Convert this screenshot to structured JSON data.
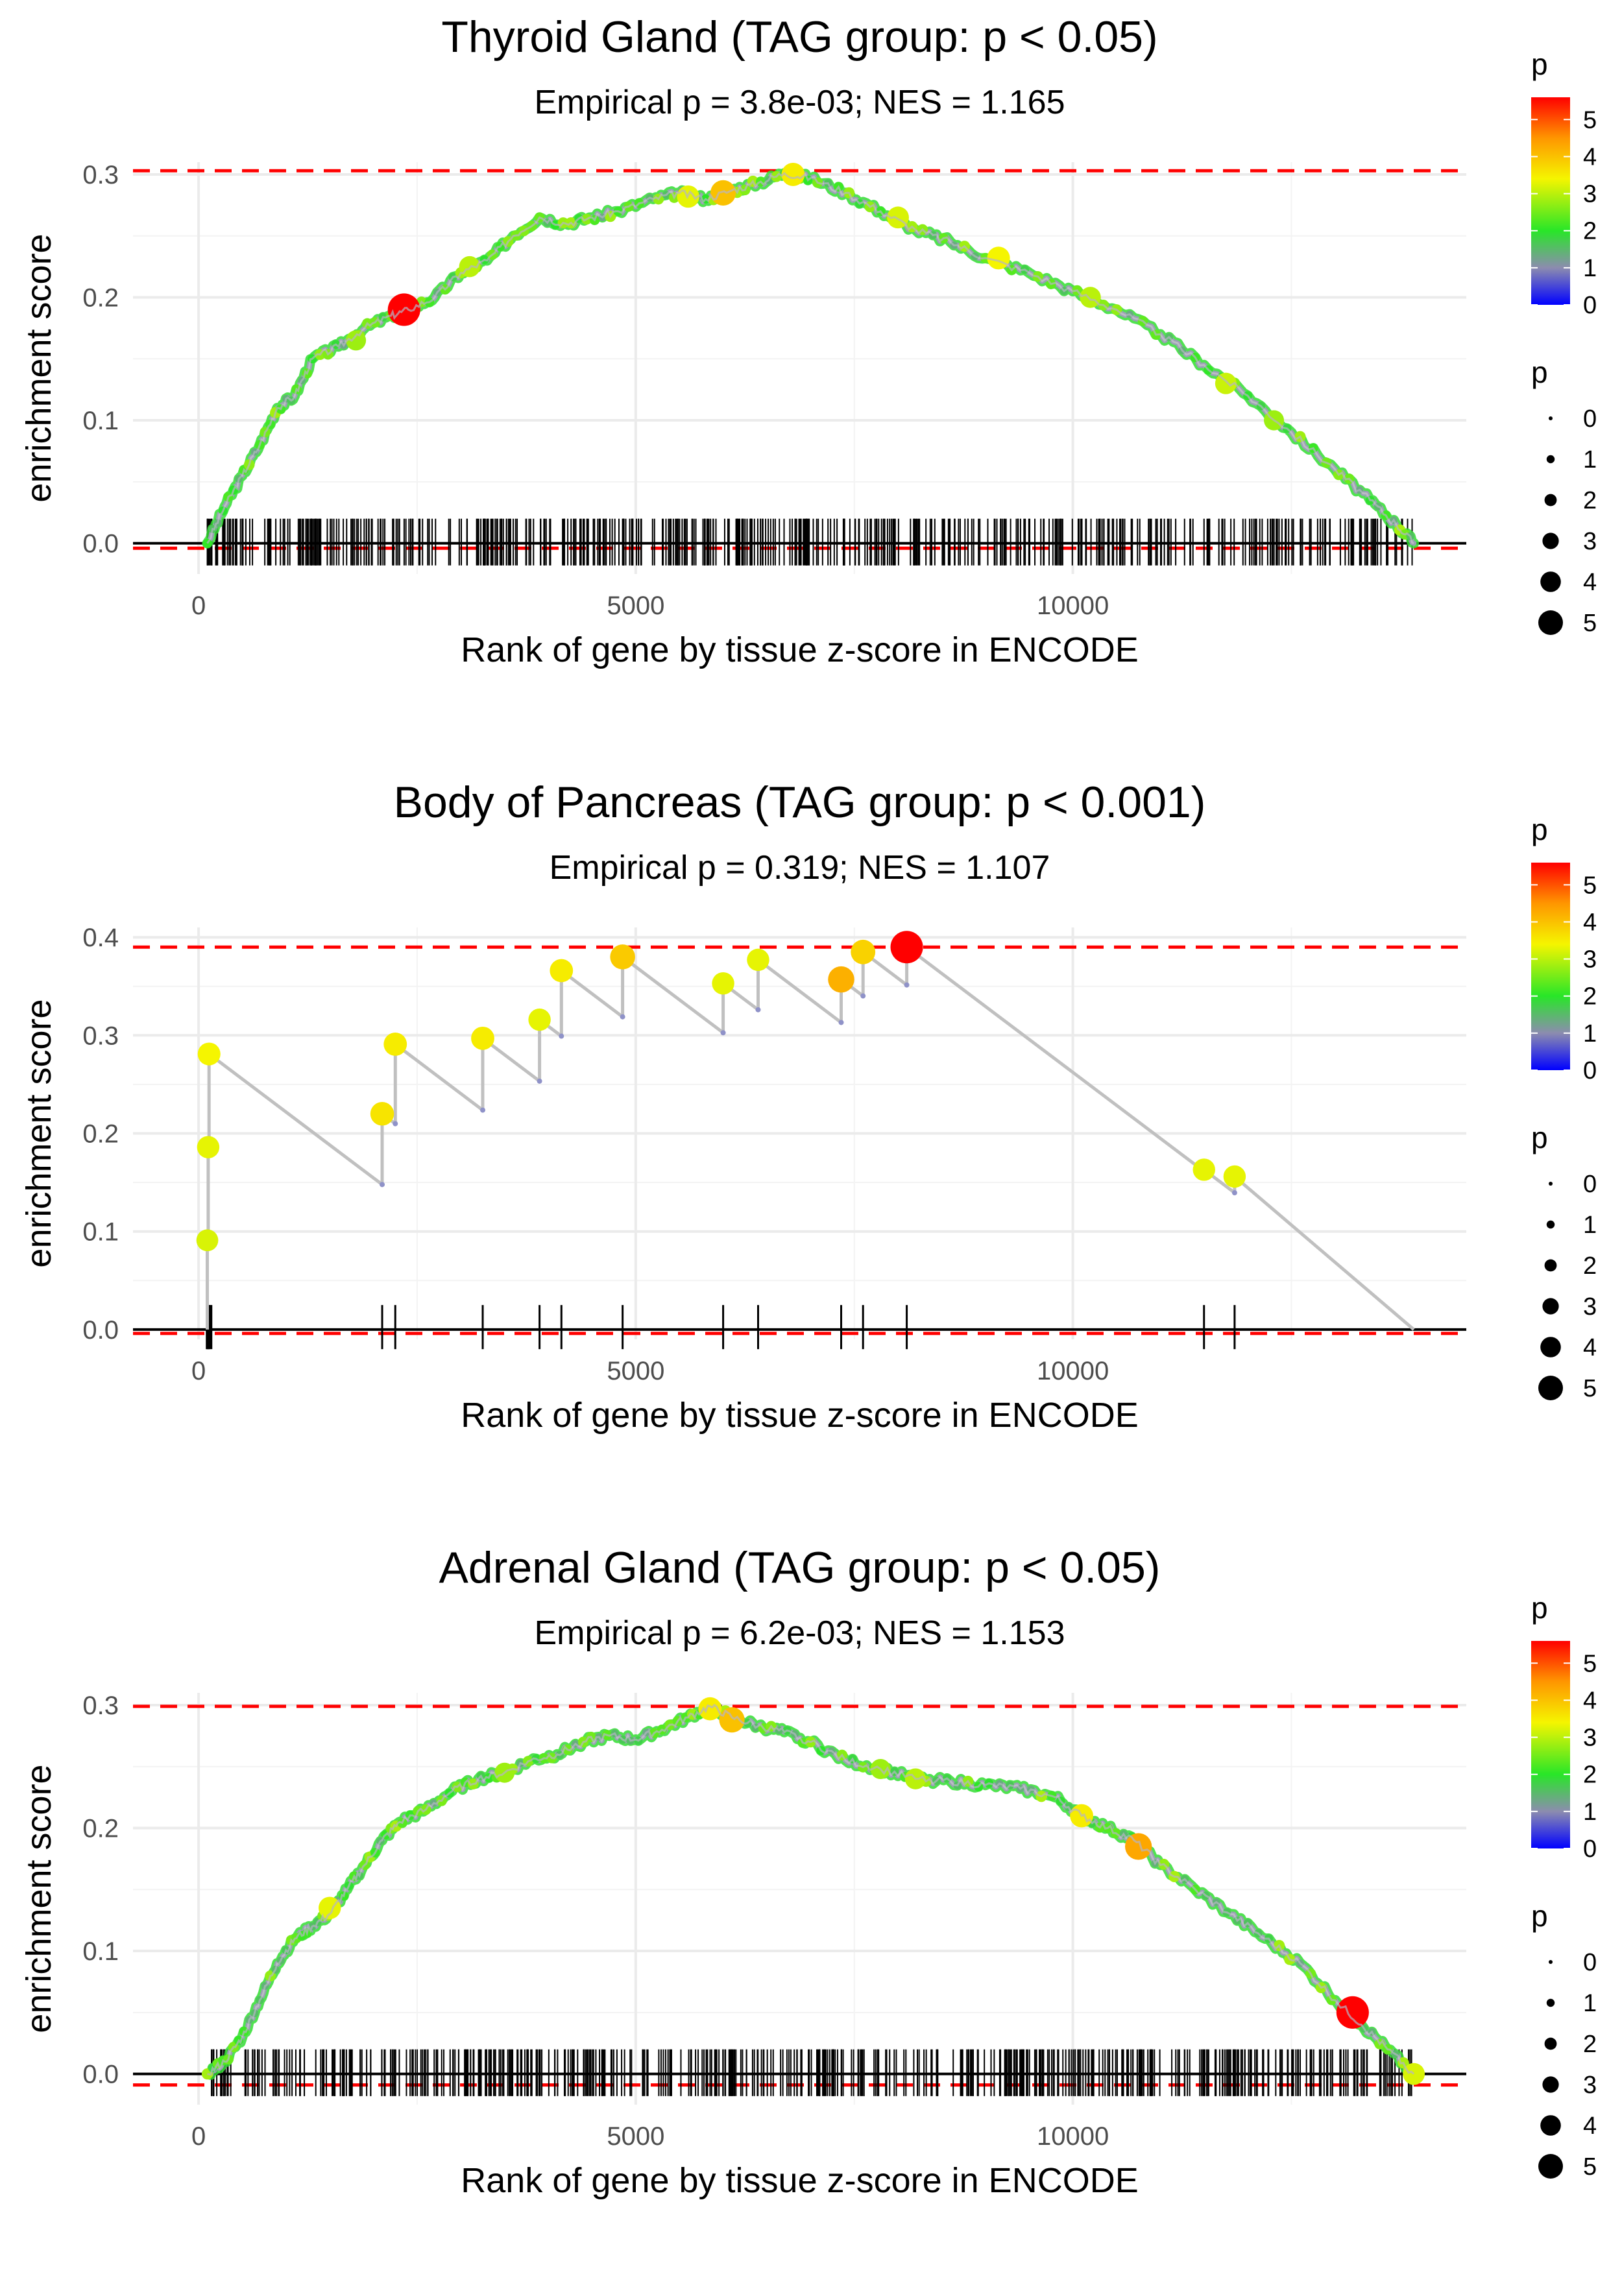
{
  "chart_data": [
    {
      "type": "line",
      "title": "Thyroid Gland (TAG group: p < 0.05)",
      "subtitle": "Empirical p = 3.8e-03; NES = 1.165",
      "xlabel": "Rank of gene by tissue z-score in ENCODE",
      "ylabel": "enrichment score",
      "xlim": [
        -750,
        14500
      ],
      "ylim": [
        -0.025,
        0.31
      ],
      "x_ticks": [
        0,
        5000,
        10000
      ],
      "y_ticks": [
        0.0,
        0.1,
        0.2,
        0.3
      ],
      "x_tick_labels": [
        "0",
        "5000",
        "10000"
      ],
      "y_tick_labels": [
        "0.0",
        "0.1",
        "0.2",
        "0.3"
      ],
      "hlines": [
        0.303,
        -0.004
      ],
      "x_max": 13900,
      "curve": [
        [
          100,
          0.0
        ],
        [
          300,
          0.03
        ],
        [
          500,
          0.055
        ],
        [
          700,
          0.08
        ],
        [
          900,
          0.11
        ],
        [
          1100,
          0.12
        ],
        [
          1300,
          0.15
        ],
        [
          1600,
          0.16
        ],
        [
          1900,
          0.175
        ],
        [
          2200,
          0.185
        ],
        [
          2400,
          0.19
        ],
        [
          2700,
          0.2
        ],
        [
          3000,
          0.22
        ],
        [
          3300,
          0.23
        ],
        [
          3600,
          0.25
        ],
        [
          3900,
          0.265
        ],
        [
          4200,
          0.26
        ],
        [
          4500,
          0.265
        ],
        [
          4800,
          0.27
        ],
        [
          5200,
          0.28
        ],
        [
          5500,
          0.285
        ],
        [
          5800,
          0.28
        ],
        [
          6100,
          0.287
        ],
        [
          6400,
          0.293
        ],
        [
          6700,
          0.301
        ],
        [
          7000,
          0.297
        ],
        [
          7400,
          0.285
        ],
        [
          7800,
          0.27
        ],
        [
          8200,
          0.255
        ],
        [
          8600,
          0.245
        ],
        [
          9000,
          0.232
        ],
        [
          9500,
          0.22
        ],
        [
          10000,
          0.205
        ],
        [
          10500,
          0.19
        ],
        [
          11000,
          0.17
        ],
        [
          11500,
          0.145
        ],
        [
          12000,
          0.12
        ],
        [
          12500,
          0.09
        ],
        [
          13000,
          0.06
        ],
        [
          13400,
          0.035
        ],
        [
          13700,
          0.015
        ],
        [
          13900,
          0.0
        ]
      ],
      "highlight_points": [
        [
          2350,
          0.19,
          5.6
        ],
        [
          6000,
          0.285,
          4.0
        ],
        [
          6800,
          0.3,
          3.5
        ],
        [
          5600,
          0.282,
          3.3
        ],
        [
          9150,
          0.232,
          3.4
        ],
        [
          8000,
          0.265,
          3.2
        ],
        [
          10200,
          0.2,
          3.0
        ],
        [
          3100,
          0.225,
          3.0
        ],
        [
          11750,
          0.13,
          3.1
        ],
        [
          12300,
          0.1,
          2.8
        ],
        [
          1800,
          0.165,
          2.8
        ]
      ],
      "rug_count": 520,
      "rug_range": [
        100,
        13900
      ],
      "legend_color": {
        "title": "p",
        "min": 0,
        "max": 5.6,
        "labels": [
          "0",
          "1",
          "2",
          "3",
          "4",
          "5"
        ]
      },
      "legend_size": {
        "title": "p",
        "labels": [
          "0",
          "1",
          "2",
          "3",
          "4",
          "5"
        ]
      }
    },
    {
      "type": "line",
      "title": "Body of Pancreas (TAG group: p < 0.001)",
      "subtitle": "Empirical p = 0.319; NES = 1.107",
      "xlabel": "Rank of gene by tissue z-score in ENCODE",
      "ylabel": "enrichment score",
      "xlim": [
        -750,
        14500
      ],
      "ylim": [
        -0.01,
        0.41
      ],
      "x_ticks": [
        0,
        5000,
        10000
      ],
      "y_ticks": [
        0.0,
        0.1,
        0.2,
        0.3,
        0.4
      ],
      "x_tick_labels": [
        "0",
        "5000",
        "10000"
      ],
      "y_tick_labels": [
        "0.0",
        "0.1",
        "0.2",
        "0.3",
        "0.4"
      ],
      "hlines": [
        0.39,
        -0.004
      ],
      "x_max": 13900,
      "hits": [
        [
          100,
          0.091,
          3.2
        ],
        [
          110,
          0.186,
          3.3
        ],
        [
          120,
          0.281,
          3.4
        ],
        [
          2100,
          0.22,
          3.6
        ],
        [
          2250,
          0.291,
          3.5
        ],
        [
          3250,
          0.297,
          3.5
        ],
        [
          3900,
          0.316,
          3.3
        ],
        [
          4150,
          0.366,
          3.5
        ],
        [
          4850,
          0.38,
          3.9
        ],
        [
          6000,
          0.353,
          3.3
        ],
        [
          6400,
          0.377,
          3.3
        ],
        [
          7350,
          0.357,
          4.2
        ],
        [
          7600,
          0.385,
          3.8
        ],
        [
          8100,
          0.39,
          5.6
        ],
        [
          11500,
          0.163,
          3.3
        ],
        [
          11850,
          0.156,
          3.3
        ]
      ],
      "legend_color": {
        "title": "p",
        "min": 0,
        "max": 5.6,
        "labels": [
          "0",
          "1",
          "2",
          "3",
          "4",
          "5"
        ]
      },
      "legend_size": {
        "title": "p",
        "labels": [
          "0",
          "1",
          "2",
          "3",
          "4",
          "5"
        ]
      }
    },
    {
      "type": "line",
      "title": "Adrenal Gland (TAG group: p < 0.05)",
      "subtitle": "Empirical p = 6.2e-03; NES = 1.153",
      "xlabel": "Rank of gene by tissue z-score in ENCODE",
      "ylabel": "enrichment score",
      "xlim": [
        -750,
        14500
      ],
      "ylim": [
        -0.025,
        0.31
      ],
      "x_ticks": [
        0,
        5000,
        10000
      ],
      "y_ticks": [
        0.0,
        0.1,
        0.2,
        0.3
      ],
      "x_tick_labels": [
        "0",
        "5000",
        "10000"
      ],
      "y_tick_labels": [
        "0.0",
        "0.1",
        "0.2",
        "0.3"
      ],
      "hlines": [
        0.299,
        -0.009
      ],
      "x_max": 13900,
      "curve": [
        [
          100,
          0.0
        ],
        [
          300,
          0.01
        ],
        [
          500,
          0.03
        ],
        [
          700,
          0.06
        ],
        [
          900,
          0.09
        ],
        [
          1100,
          0.11
        ],
        [
          1300,
          0.12
        ],
        [
          1500,
          0.13
        ],
        [
          1700,
          0.15
        ],
        [
          1900,
          0.17
        ],
        [
          2100,
          0.19
        ],
        [
          2300,
          0.205
        ],
        [
          2600,
          0.215
        ],
        [
          2900,
          0.23
        ],
        [
          3200,
          0.24
        ],
        [
          3500,
          0.245
        ],
        [
          3800,
          0.255
        ],
        [
          4100,
          0.26
        ],
        [
          4400,
          0.27
        ],
        [
          4700,
          0.275
        ],
        [
          5000,
          0.272
        ],
        [
          5300,
          0.28
        ],
        [
          5600,
          0.29
        ],
        [
          5850,
          0.299
        ],
        [
          6100,
          0.29
        ],
        [
          6400,
          0.283
        ],
        [
          6700,
          0.278
        ],
        [
          7000,
          0.27
        ],
        [
          7400,
          0.255
        ],
        [
          7800,
          0.248
        ],
        [
          8200,
          0.24
        ],
        [
          8600,
          0.238
        ],
        [
          9000,
          0.235
        ],
        [
          9400,
          0.232
        ],
        [
          9800,
          0.225
        ],
        [
          10100,
          0.21
        ],
        [
          10400,
          0.2
        ],
        [
          10700,
          0.19
        ],
        [
          11000,
          0.17
        ],
        [
          11400,
          0.15
        ],
        [
          11800,
          0.13
        ],
        [
          12200,
          0.11
        ],
        [
          12600,
          0.09
        ],
        [
          13000,
          0.06
        ],
        [
          13300,
          0.04
        ],
        [
          13600,
          0.02
        ],
        [
          13900,
          0.0
        ]
      ],
      "highlight_points": [
        [
          13200,
          0.05,
          5.6
        ],
        [
          10750,
          0.185,
          4.3
        ],
        [
          5850,
          0.297,
          3.5
        ],
        [
          6100,
          0.288,
          4.0
        ],
        [
          10100,
          0.21,
          3.5
        ],
        [
          1500,
          0.135,
          3.3
        ],
        [
          8200,
          0.24,
          3.0
        ],
        [
          7800,
          0.248,
          2.8
        ],
        [
          13900,
          0.0,
          3.2
        ],
        [
          3500,
          0.245,
          2.8
        ]
      ],
      "rug_count": 540,
      "rug_range": [
        100,
        13900
      ],
      "legend_color": {
        "title": "p",
        "min": 0,
        "max": 5.6,
        "labels": [
          "0",
          "1",
          "2",
          "3",
          "4",
          "5"
        ]
      },
      "legend_size": {
        "title": "p",
        "labels": [
          "0",
          "1",
          "2",
          "3",
          "4",
          "5"
        ]
      }
    }
  ]
}
